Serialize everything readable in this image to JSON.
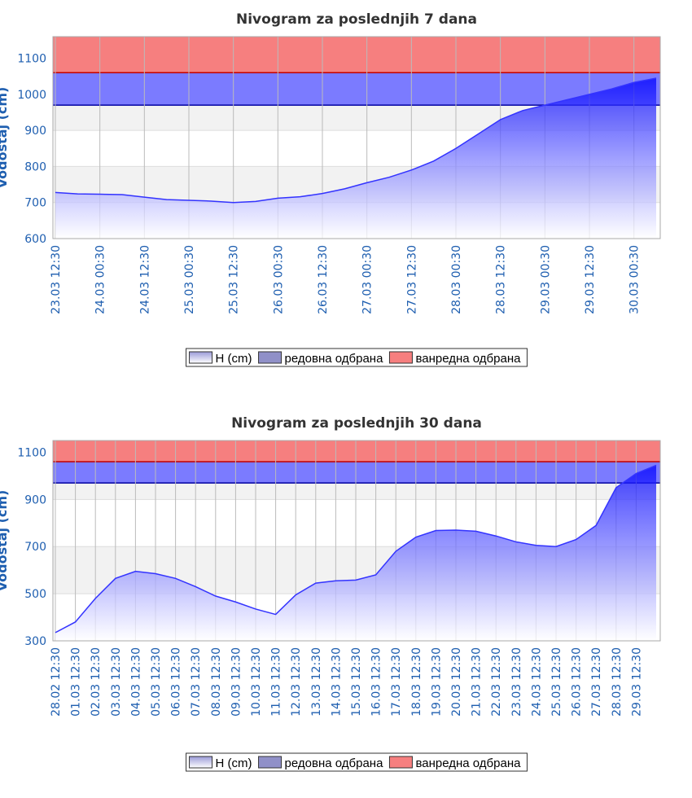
{
  "chart_data": [
    {
      "type": "area",
      "title": "Nivogram za poslednjih 7 dana",
      "y_label": "Vodostaj (cm)",
      "categories": [
        "23.03 12:30",
        null,
        "24.03 00:30",
        null,
        "24.03 12:30",
        null,
        "25.03 00:30",
        null,
        "25.03 12:30",
        null,
        "26.03 00:30",
        null,
        "26.03 12:30",
        null,
        "27.03 00:30",
        null,
        "27.03 12:30",
        null,
        "28.03 00:30",
        null,
        "28.03 12:30",
        null,
        "29.03 00:30",
        null,
        "29.03 12:30",
        null,
        "30.03 00:30",
        null
      ],
      "series": [
        {
          "name": "H (cm)",
          "color": "#3333ff",
          "values": [
            728,
            724,
            723,
            722,
            715,
            708,
            706,
            704,
            700,
            703,
            712,
            716,
            725,
            738,
            755,
            770,
            790,
            815,
            850,
            890,
            930,
            955,
            970,
            985,
            1000,
            1015,
            1033,
            1045
          ]
        }
      ],
      "bands": [
        {
          "name": "редовна одбрана",
          "color": "#7b7bff",
          "range": [
            970,
            1060
          ]
        },
        {
          "name": "ванредна одбрана",
          "color": "#f67f7f",
          "range": [
            1060,
            1160
          ]
        }
      ],
      "ylim": [
        600,
        1160
      ],
      "yticks": [
        600,
        700,
        800,
        900,
        1000,
        1100
      ],
      "grid": true
    },
    {
      "type": "area",
      "title": "Nivogram za poslednjih 30 dana",
      "y_label": "Vodostaj (cm)",
      "categories": [
        "28.02 12:30",
        "01.03 12:30",
        "02.03 12:30",
        "03.03 12:30",
        "04.03 12:30",
        "05.03 12:30",
        "06.03 12:30",
        "07.03 12:30",
        "08.03 12:30",
        "09.03 12:30",
        "10.03 12:30",
        "11.03 12:30",
        "12.03 12:30",
        "13.03 12:30",
        "14.03 12:30",
        "15.03 12:30",
        "16.03 12:30",
        "17.03 12:30",
        "18.03 12:30",
        "19.03 12:30",
        "20.03 12:30",
        "21.03 12:30",
        "22.03 12:30",
        "23.03 12:30",
        "24.03 12:30",
        "25.03 12:30",
        "26.03 12:30",
        "27.03 12:30",
        "28.03 12:30",
        "29.03 12:30",
        null
      ],
      "series": [
        {
          "name": "H (cm)",
          "color": "#3333ff",
          "values": [
            335,
            380,
            480,
            565,
            595,
            585,
            565,
            530,
            490,
            465,
            435,
            412,
            495,
            545,
            555,
            558,
            580,
            680,
            740,
            768,
            770,
            765,
            745,
            720,
            705,
            700,
            730,
            790,
            950,
            1010,
            1045
          ]
        }
      ],
      "bands": [
        {
          "name": "редовна одбрана",
          "color": "#7b7bff",
          "range": [
            970,
            1060
          ]
        },
        {
          "name": "ванредна одбрана",
          "color": "#f67f7f",
          "range": [
            1060,
            1150
          ]
        }
      ],
      "ylim": [
        300,
        1150
      ],
      "yticks": [
        300,
        500,
        700,
        900,
        1100
      ],
      "grid": true
    }
  ]
}
